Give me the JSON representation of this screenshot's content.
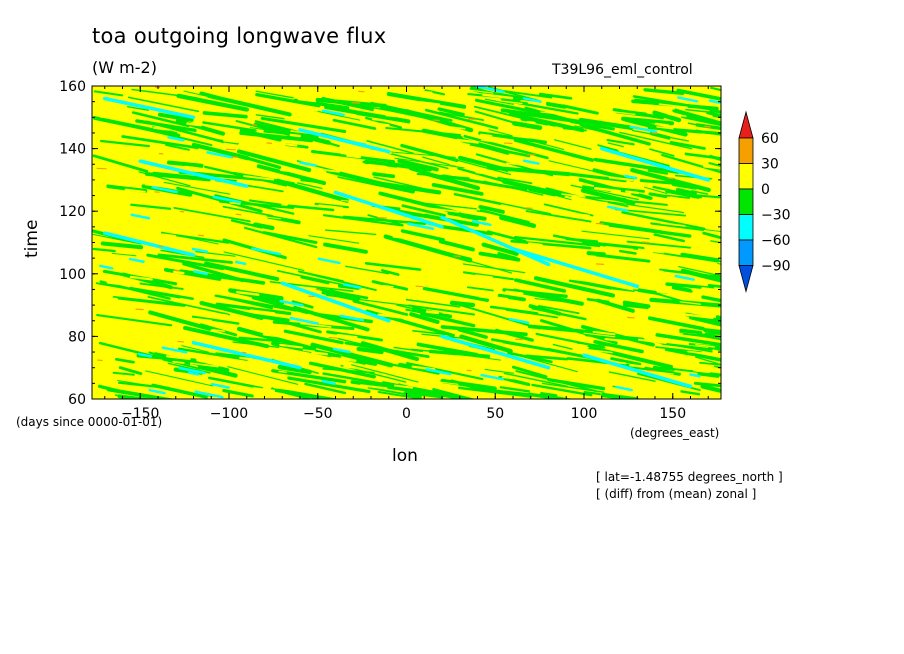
{
  "chart_data": {
    "type": "heatmap",
    "title": "toa outgoing longwave flux",
    "units": "(W m-2)",
    "run_name": "T39L96_eml_control",
    "xlabel": "lon",
    "ylabel": "time",
    "x_units": "(degrees_east)",
    "y_units": "(days since 0000-01-01)",
    "xlim": [
      -177.1875,
      177.1875
    ],
    "ylim": [
      60,
      160
    ],
    "x_ticks": [
      -150,
      -100,
      -50,
      0,
      50,
      100,
      150
    ],
    "y_ticks": [
      60,
      80,
      100,
      120,
      140,
      160
    ],
    "colorbar": {
      "levels": [
        60,
        30,
        0,
        -30,
        -60,
        -90
      ],
      "colors": [
        "#e8201a",
        "#f5a000",
        "#ffff00",
        "#00e600",
        "#00ffff",
        "#0099ff",
        "#0050e0"
      ],
      "extend": "both"
    },
    "annotations": [
      "[ lat=-1.48755 degrees_north ]",
      "[ (diff) from (mean) zonal ]"
    ],
    "streaks": [
      {
        "lon0": -170,
        "t0": 156,
        "lon1": -120,
        "t1": 150,
        "level": "-30..-60"
      },
      {
        "lon0": -60,
        "t0": 146,
        "lon1": -10,
        "t1": 139,
        "level": "-30..-60"
      },
      {
        "lon0": -40,
        "t0": 126,
        "lon1": 20,
        "t1": 115,
        "level": "-30..-60"
      },
      {
        "lon0": 20,
        "t0": 118,
        "lon1": 80,
        "t1": 103,
        "level": "-30..-60"
      },
      {
        "lon0": 60,
        "t0": 108,
        "lon1": 130,
        "t1": 96,
        "level": "-30..-60"
      },
      {
        "lon0": -70,
        "t0": 97,
        "lon1": -10,
        "t1": 85,
        "level": "-30..-60"
      },
      {
        "lon0": -170,
        "t0": 113,
        "lon1": -120,
        "t1": 106,
        "level": "-30..-60"
      },
      {
        "lon0": -120,
        "t0": 78,
        "lon1": -60,
        "t1": 70,
        "level": "-30..-60"
      },
      {
        "lon0": 20,
        "t0": 80,
        "lon1": 80,
        "t1": 70,
        "level": "-30..-60"
      },
      {
        "lon0": 100,
        "t0": 74,
        "lon1": 160,
        "t1": 64,
        "level": "-30..-60"
      },
      {
        "lon0": 110,
        "t0": 140,
        "lon1": 170,
        "t1": 130,
        "level": "-30..-60"
      },
      {
        "lon0": -150,
        "t0": 136,
        "lon1": -90,
        "t1": 128,
        "level": "-30..-60"
      }
    ]
  }
}
